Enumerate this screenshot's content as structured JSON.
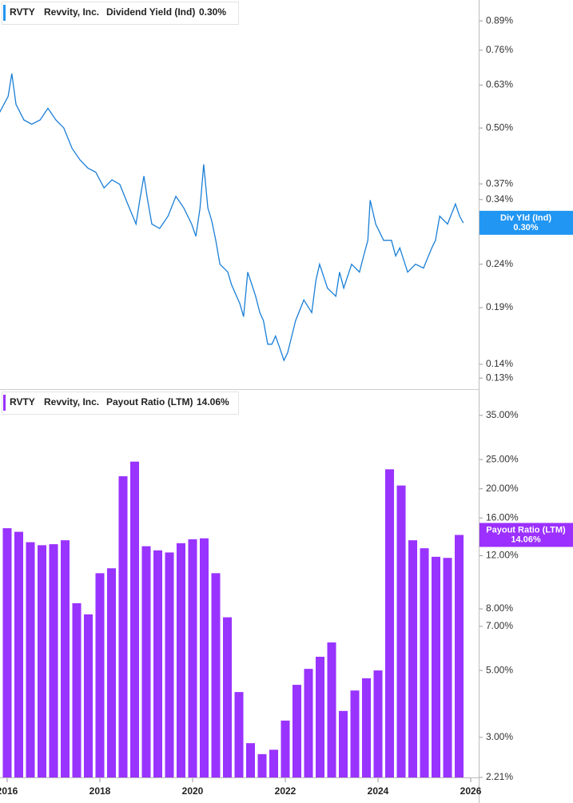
{
  "chart_data": [
    {
      "type": "line",
      "ticker": "RVTY",
      "company": "Revvity, Inc.",
      "name": "Dividend Yield (Ind)",
      "short_name": "Div Yld (Ind)",
      "current": {
        "value": 0.3,
        "label": "0.30%"
      },
      "color": "#1a7fd6",
      "badge_color": "#2196f3",
      "log_scale": true,
      "x": [
        2015.84,
        2016.02,
        2016.1,
        2016.19,
        2016.36,
        2016.53,
        2016.71,
        2016.88,
        2017.05,
        2017.22,
        2017.4,
        2017.57,
        2017.74,
        2017.91,
        2018.09,
        2018.26,
        2018.43,
        2018.6,
        2018.78,
        2018.86,
        2018.95,
        2019.03,
        2019.12,
        2019.29,
        2019.47,
        2019.64,
        2019.81,
        2019.98,
        2020.07,
        2020.16,
        2020.24,
        2020.33,
        2020.41,
        2020.5,
        2020.59,
        2020.76,
        2020.84,
        2021.02,
        2021.1,
        2021.19,
        2021.36,
        2021.45,
        2021.53,
        2021.62,
        2021.71,
        2021.79,
        2021.88,
        2021.97,
        2022.05,
        2022.14,
        2022.22,
        2022.4,
        2022.57,
        2022.66,
        2022.74,
        2022.91,
        2023.09,
        2023.17,
        2023.26,
        2023.43,
        2023.6,
        2023.69,
        2023.78,
        2023.83,
        2023.95,
        2024.12,
        2024.29,
        2024.38,
        2024.47,
        2024.64,
        2024.81,
        2024.98,
        2025.16,
        2025.24,
        2025.33,
        2025.5,
        2025.67,
        2025.76,
        2025.84
      ],
      "values": [
        0.544,
        0.593,
        0.67,
        0.568,
        0.522,
        0.51,
        0.522,
        0.556,
        0.522,
        0.5,
        0.448,
        0.421,
        0.403,
        0.394,
        0.362,
        0.378,
        0.369,
        0.332,
        0.298,
        0.339,
        0.386,
        0.339,
        0.298,
        0.291,
        0.311,
        0.346,
        0.325,
        0.298,
        0.279,
        0.325,
        0.411,
        0.325,
        0.304,
        0.273,
        0.24,
        0.23,
        0.215,
        0.194,
        0.181,
        0.23,
        0.202,
        0.185,
        0.177,
        0.156,
        0.156,
        0.163,
        0.153,
        0.143,
        0.149,
        0.163,
        0.177,
        0.198,
        0.185,
        0.22,
        0.24,
        0.211,
        0.202,
        0.23,
        0.211,
        0.24,
        0.23,
        0.251,
        0.273,
        0.339,
        0.298,
        0.273,
        0.273,
        0.251,
        0.262,
        0.23,
        0.24,
        0.235,
        0.262,
        0.273,
        0.311,
        0.298,
        0.332,
        0.311,
        0.3
      ],
      "xlim": [
        2015.845,
        2026.172
      ],
      "ylim": [
        0.1225,
        0.996
      ],
      "yticks": [
        {
          "value": 0.89,
          "label": "0.89%"
        },
        {
          "value": 0.76,
          "label": "0.76%"
        },
        {
          "value": 0.63,
          "label": "0.63%"
        },
        {
          "value": 0.5,
          "label": "0.50%"
        },
        {
          "value": 0.37,
          "label": "0.37%"
        },
        {
          "value": 0.34,
          "label": "0.34%"
        },
        {
          "value": 0.24,
          "label": "0.24%"
        },
        {
          "value": 0.19,
          "label": "0.19%"
        },
        {
          "value": 0.14,
          "label": "0.14%"
        },
        {
          "value": 0.13,
          "label": "0.13%"
        }
      ]
    },
    {
      "type": "bar",
      "ticker": "RVTY",
      "company": "Revvity, Inc.",
      "name": "Payout Ratio (LTM)",
      "short_name": "Payout Ratio (LTM)",
      "current": {
        "value": 14.06,
        "label": "14.06%"
      },
      "color": "#9933ff",
      "badge_color": "#9b30ff",
      "log_scale": true,
      "x": [
        2016,
        2016.25,
        2016.5,
        2016.75,
        2017,
        2017.25,
        2017.5,
        2017.75,
        2018,
        2018.25,
        2018.5,
        2018.75,
        2019,
        2019.25,
        2019.5,
        2019.75,
        2020,
        2020.25,
        2020.5,
        2020.75,
        2021,
        2021.25,
        2021.5,
        2021.75,
        2022,
        2022.25,
        2022.5,
        2022.75,
        2023,
        2023.25,
        2023.5,
        2023.75,
        2024,
        2024.25,
        2024.5,
        2024.75,
        2025,
        2025.25,
        2025.5,
        2025.75
      ],
      "values": [
        14.8,
        14.4,
        13.3,
        13.0,
        13.1,
        13.5,
        8.35,
        7.67,
        10.5,
        10.9,
        22.0,
        24.6,
        12.9,
        12.5,
        12.3,
        13.2,
        13.6,
        13.7,
        10.5,
        7.5,
        4.24,
        2.87,
        2.64,
        2.73,
        3.41,
        4.48,
        5.06,
        5.55,
        6.19,
        3.67,
        4.29,
        4.71,
        5.0,
        23.2,
        20.5,
        13.5,
        12.7,
        11.9,
        11.8,
        14.06
      ],
      "xlim": [
        2015.845,
        2026.172
      ],
      "ylim": [
        2.21,
        42
      ],
      "xticks": [
        2016,
        2018,
        2020,
        2022,
        2024,
        2026
      ],
      "yticks": [
        {
          "value": 35,
          "label": "35.00%"
        },
        {
          "value": 25,
          "label": "25.00%"
        },
        {
          "value": 20,
          "label": "20.00%"
        },
        {
          "value": 16,
          "label": "16.00%"
        },
        {
          "value": 12,
          "label": "12.00%"
        },
        {
          "value": 8,
          "label": "8.00%"
        },
        {
          "value": 7,
          "label": "7.00%"
        },
        {
          "value": 5,
          "label": "5.00%"
        },
        {
          "value": 3,
          "label": "3.00%"
        },
        {
          "value": 2.21,
          "label": "2.21%"
        }
      ]
    }
  ]
}
